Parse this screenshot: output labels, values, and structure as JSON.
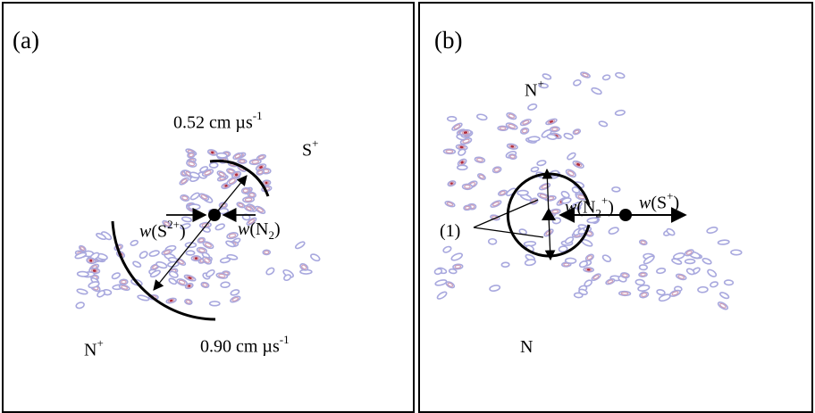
{
  "panel_a": {
    "label": "(a)",
    "speed_top": "0.52 cm µs",
    "speed_top_exp": "-1",
    "speed_bottom": "0.90 cm µs",
    "speed_bottom_exp": "-1",
    "ion_s_plus": "S",
    "ion_s_plus_charge": "+",
    "ion_n_plus": "N",
    "ion_n_plus_charge": "+",
    "w_s2_prefix": "w",
    "w_s2_open": "(S",
    "w_s2_charge": "2+",
    "w_s2_close": ")",
    "w_n2_prefix": "w",
    "w_n2_open": "(N",
    "w_n2_sub": "2",
    "w_n2_close": ")"
  },
  "panel_b": {
    "label": "(b)",
    "ion_n_plus": "N",
    "ion_n_plus_charge": "+",
    "ion_n": "N",
    "marker_1": "(1)",
    "w_n2p_prefix": "w",
    "w_n2p_open": "(N",
    "w_n2p_sub": "2",
    "w_n2p_charge": "+",
    "w_n2p_close": ")",
    "w_sp_prefix": "w",
    "w_sp_open": "(S",
    "w_sp_charge": "+",
    "w_sp_close": ")"
  },
  "colors": {
    "contour_outer": "#a8a8de",
    "contour_mid": "#d0a0b8",
    "contour_core": "#b02a3a",
    "ink": "#000000"
  }
}
